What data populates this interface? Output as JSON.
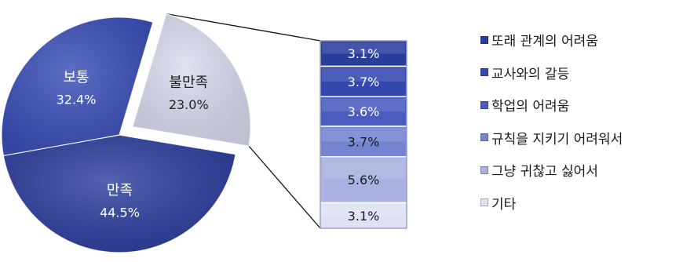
{
  "chart_data": [
    {
      "type": "pie",
      "slices": [
        {
          "label": "만족",
          "value": 44.5,
          "value_label": "44.5%",
          "color": "#2e3f9e"
        },
        {
          "label": "보통",
          "value": 32.4,
          "value_label": "32.4%",
          "color": "#3a4fb8"
        },
        {
          "label": "불만족",
          "value": 23.0,
          "value_label": "23.0%",
          "color": "#d9dcef"
        }
      ],
      "exploded_slice": "불만족"
    },
    {
      "type": "bar",
      "stacked": true,
      "categories": [
        "또래 관계의 어려움",
        "교사와의 갈등",
        "학업의 어려움",
        "규칙을 지키기 어려워서",
        "그냥 귀찮고 싫어서",
        "기타"
      ],
      "values": [
        3.1,
        3.7,
        3.6,
        3.7,
        5.6,
        3.1
      ],
      "value_labels": [
        "3.1%",
        "3.7%",
        "3.6%",
        "3.7%",
        "5.6%",
        "3.1%"
      ],
      "colors": [
        "#2b3d9c",
        "#3447ad",
        "#4a5cbf",
        "#7584cf",
        "#a8b1e1",
        "#dfe2f4"
      ],
      "legend_position": "right"
    }
  ]
}
